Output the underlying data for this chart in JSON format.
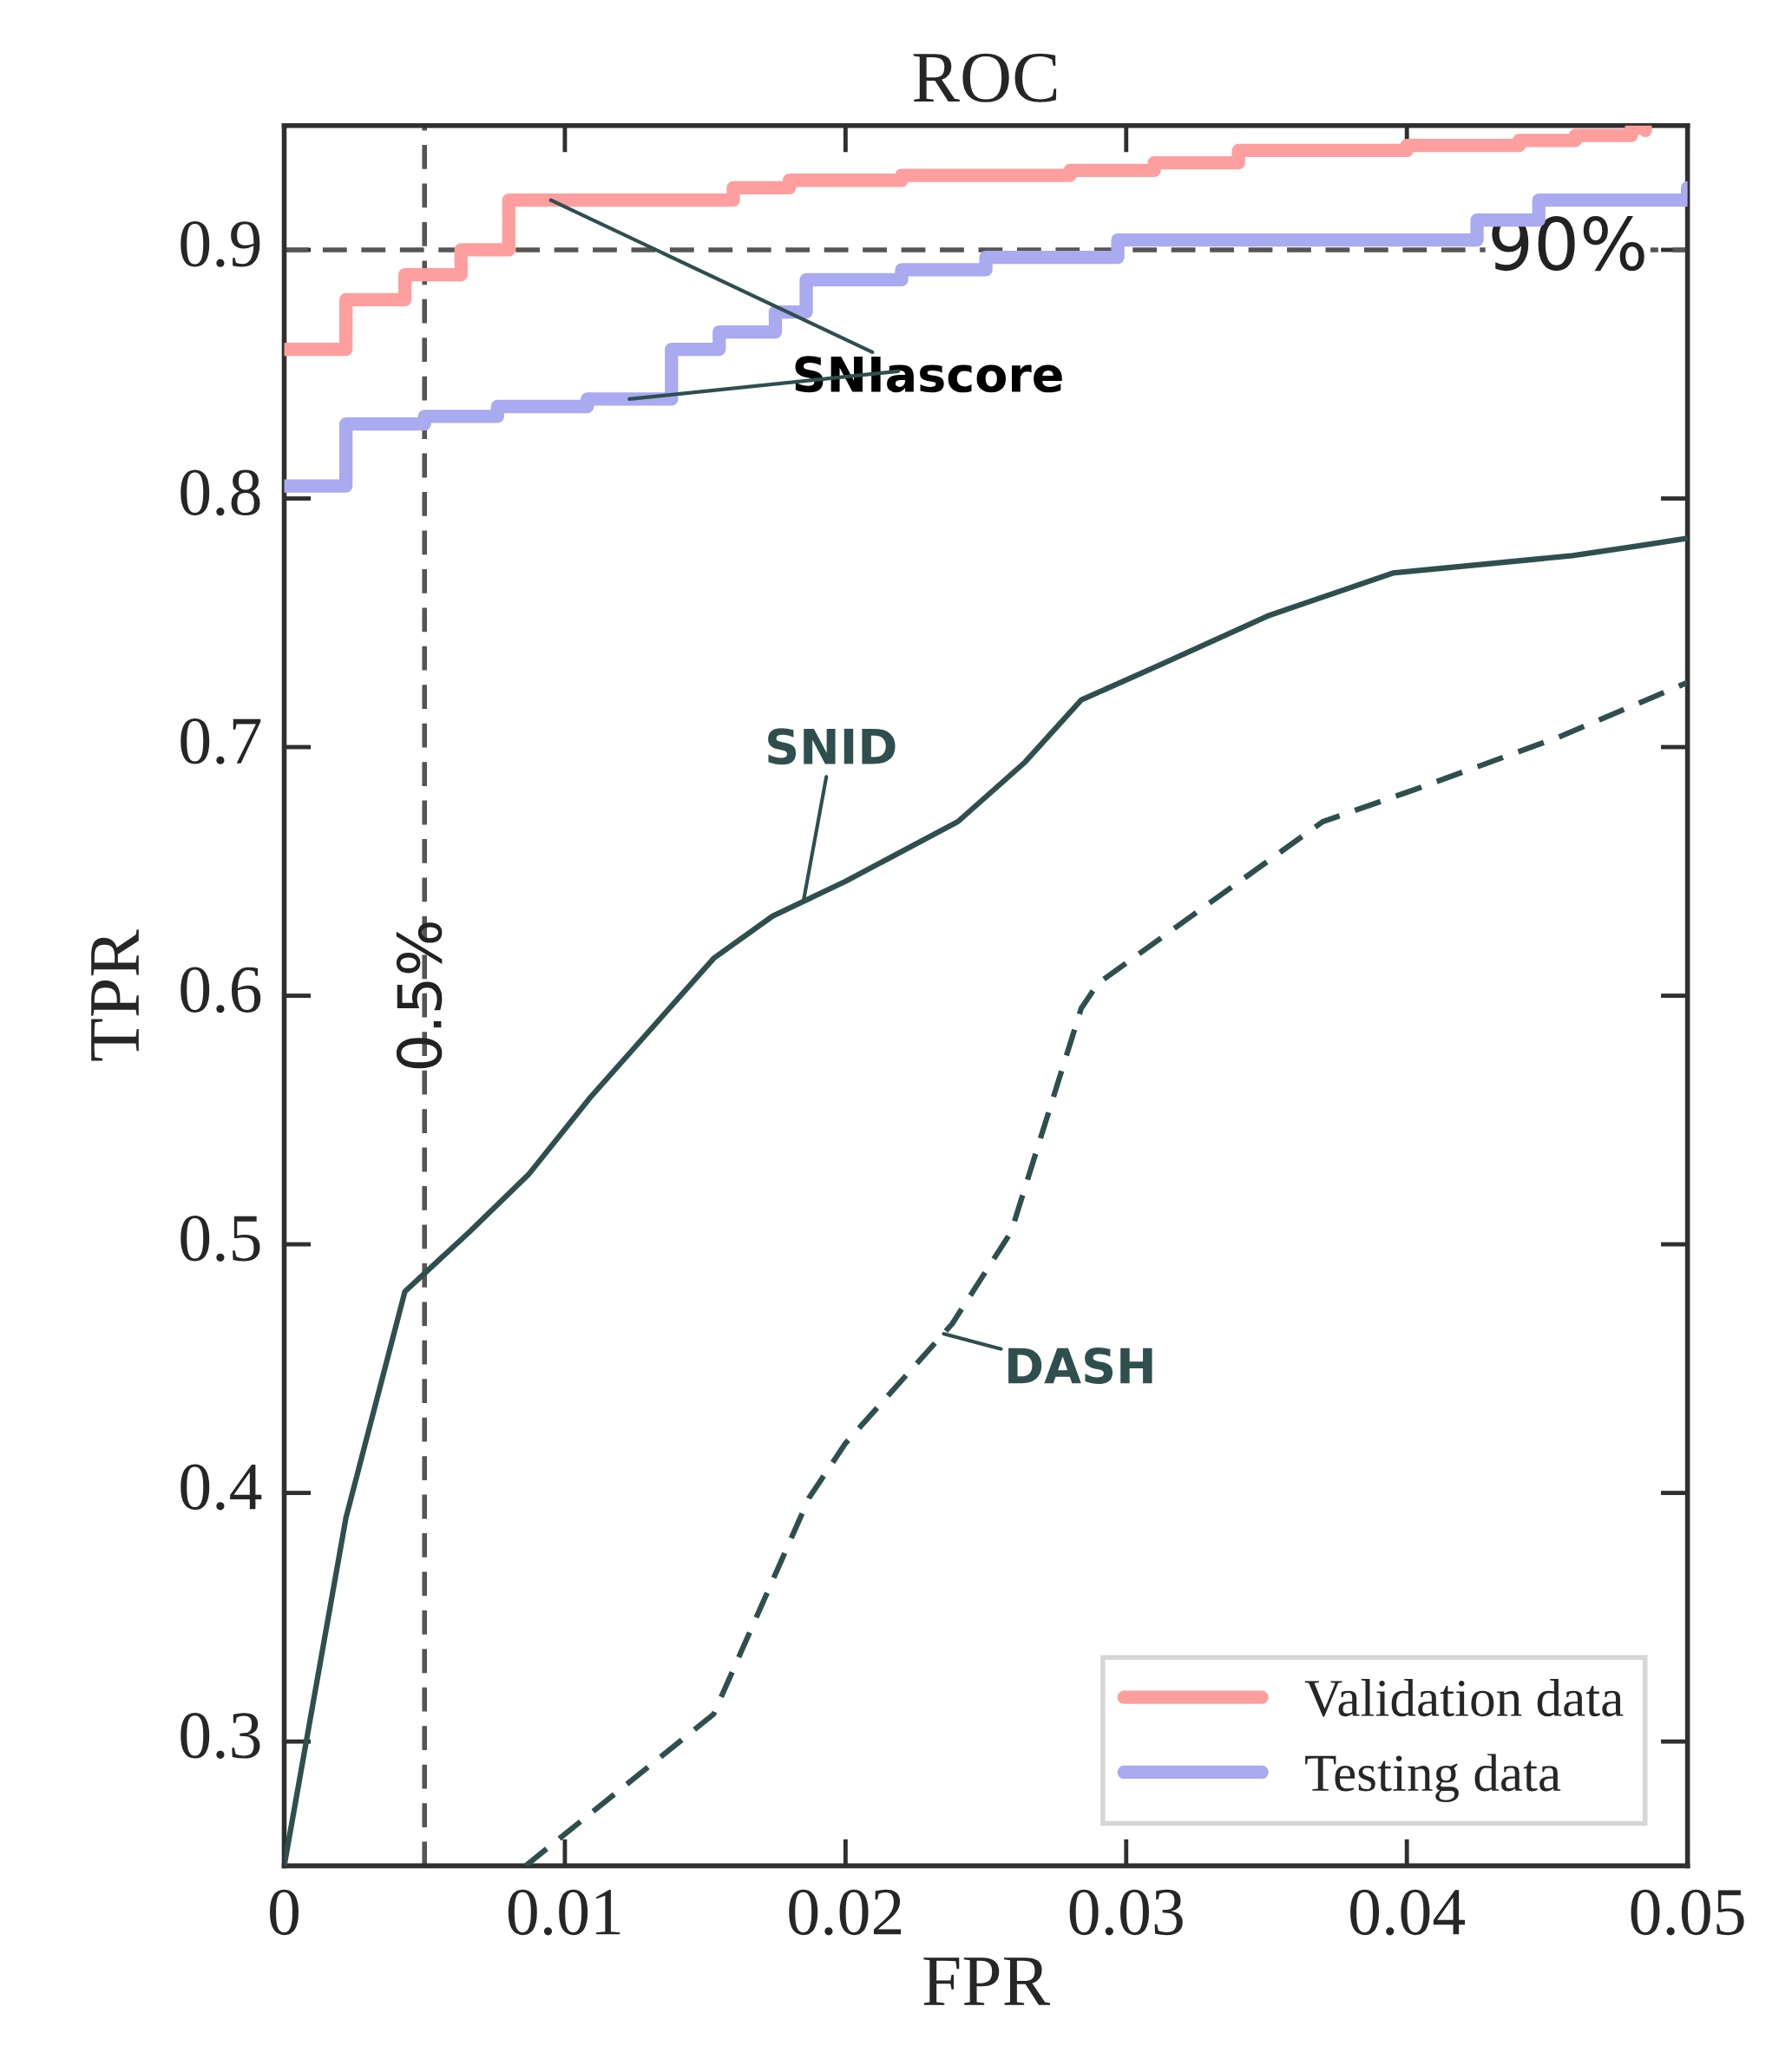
{
  "chart_data": {
    "type": "line",
    "title": "ROC",
    "xlabel": "FPR",
    "ylabel": "TPR",
    "xlim": [
      0,
      0.05
    ],
    "ylim": [
      0.25,
      0.95
    ],
    "xticks": [
      {
        "value": 0,
        "label": "0"
      },
      0.01,
      0.02,
      0.03,
      0.04,
      0.05
    ],
    "yticks": [
      0.3,
      0.4,
      0.5,
      0.6,
      0.7,
      0.8,
      0.9
    ],
    "grid": false,
    "legend": "bottom right",
    "series": [
      {
        "name": "Validation data",
        "type": "step",
        "color": "#ff9e9e",
        "x": [
          0,
          0.0022,
          0.0043,
          0.0063,
          0.008,
          0.016,
          0.018,
          0.022,
          0.028,
          0.031,
          0.034,
          0.04,
          0.044,
          0.046,
          0.048,
          0.0485
        ],
        "values": [
          0.86,
          0.88,
          0.89,
          0.9,
          0.92,
          0.925,
          0.928,
          0.93,
          0.932,
          0.935,
          0.94,
          0.942,
          0.944,
          0.946,
          0.949,
          0.948
        ]
      },
      {
        "name": "Testing data",
        "type": "step",
        "color": "#a9aaf0",
        "x": [
          0,
          0.0022,
          0.005,
          0.0076,
          0.0108,
          0.0138,
          0.0155,
          0.0175,
          0.0186,
          0.022,
          0.025,
          0.0297,
          0.0425,
          0.0447,
          0.05
        ],
        "values": [
          0.805,
          0.83,
          0.833,
          0.837,
          0.84,
          0.86,
          0.867,
          0.875,
          0.888,
          0.892,
          0.897,
          0.904,
          0.912,
          0.92,
          0.925
        ]
      },
      {
        "line_style": "solid",
        "color": "#2f4f4f",
        "x": [
          0,
          0.0022,
          0.0043,
          0.0066,
          0.0087,
          0.0109,
          0.0153,
          0.0174,
          0.02,
          0.024,
          0.0264,
          0.0284,
          0.0308,
          0.0351,
          0.0395,
          0.0459,
          0.0483,
          0.05
        ],
        "values": [
          0.25,
          0.39,
          0.481,
          0.505,
          0.528,
          0.559,
          0.615,
          0.632,
          0.646,
          0.67,
          0.694,
          0.719,
          0.731,
          0.753,
          0.77,
          0.777,
          0.781,
          0.784
        ]
      },
      {
        "line_style": "dashed",
        "color": "#2f4f4f",
        "x": [
          0.0086,
          0.0153,
          0.0187,
          0.02,
          0.0238,
          0.0259,
          0.0284,
          0.029,
          0.037,
          0.0403,
          0.0454,
          0.05
        ],
        "values": [
          0.25,
          0.311,
          0.398,
          0.42,
          0.468,
          0.505,
          0.595,
          0.605,
          0.67,
          0.683,
          0.704,
          0.726
        ]
      }
    ],
    "ref_lines": [
      {
        "axis": "y",
        "value": 0.9,
        "label": "90%",
        "color": "#555555",
        "line_style": "dashed"
      },
      {
        "axis": "x",
        "value": 0.005,
        "label": "0.5%",
        "color": "#555555",
        "line_style": "dashed"
      }
    ],
    "annotations": [
      {
        "text": "SNIascore",
        "x": 0.0095,
        "y": 0.92
      },
      {
        "text": "SNID",
        "x": 0.0185,
        "y": 0.638
      },
      {
        "text": "DASH",
        "x": 0.0235,
        "y": 0.464
      }
    ]
  }
}
